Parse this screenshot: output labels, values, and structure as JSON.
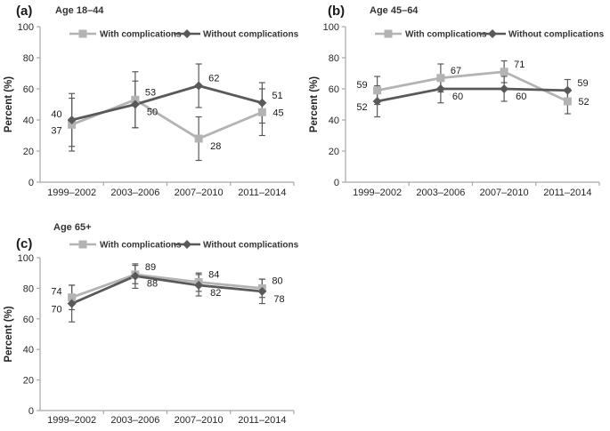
{
  "figure": {
    "background": "#ffffff"
  },
  "colors": {
    "with_complications": "#b3b3b3",
    "without_complications": "#595959",
    "axis": "#a6a6a6",
    "error_bar": "#595959",
    "tick_text": "#262626",
    "data_label_text": "#1a1a1a",
    "title_text": "#333333",
    "panel_label_text": "#1a1a1a"
  },
  "chart_data": [
    {
      "id": "a",
      "type": "line",
      "panel_label": "(a)",
      "title": "Age 18–44",
      "ylabel": "Percent (%)",
      "ylim": [
        0,
        100
      ],
      "yticks": [
        0,
        20,
        40,
        60,
        80,
        100
      ],
      "grid": false,
      "legend_position": "top-inside",
      "categories": [
        "1999–2002",
        "2003–2006",
        "2007–2010",
        "2011–2014"
      ],
      "series": [
        {
          "name": "With complications",
          "marker": "square",
          "color_key": "with_complications",
          "values": [
            37,
            53,
            28,
            45
          ],
          "errors": [
            17,
            18,
            14,
            15
          ],
          "label_pos": [
            "left-down",
            "right-up",
            "right-down",
            "right"
          ]
        },
        {
          "name": "Without complications",
          "marker": "diamond",
          "color_key": "without_complications",
          "values": [
            40,
            50,
            62,
            51
          ],
          "errors": [
            17,
            15,
            14,
            13
          ],
          "label_pos": [
            "left-up",
            "right-down",
            "right-up",
            "right-up"
          ]
        }
      ]
    },
    {
      "id": "b",
      "type": "line",
      "panel_label": "(b)",
      "title": "Age 45–64",
      "ylabel": "Percent (%)",
      "ylim": [
        0,
        100
      ],
      "yticks": [
        0,
        20,
        40,
        60,
        80,
        100
      ],
      "grid": false,
      "legend_position": "top-inside",
      "categories": [
        "1999–2002",
        "2003–2006",
        "2007–2010",
        "2011–2014"
      ],
      "series": [
        {
          "name": "With complications",
          "marker": "square",
          "color_key": "with_complications",
          "values": [
            59,
            67,
            71,
            52
          ],
          "errors": [
            9,
            9,
            7,
            8
          ],
          "label_pos": [
            "left-up",
            "right-up",
            "right-up",
            "right"
          ]
        },
        {
          "name": "Without complications",
          "marker": "diamond",
          "color_key": "without_complications",
          "values": [
            52,
            60,
            60,
            59
          ],
          "errors": [
            10,
            9,
            8,
            7
          ],
          "label_pos": [
            "left-down",
            "right-down",
            "right-down",
            "right-up"
          ]
        }
      ]
    },
    {
      "id": "c",
      "type": "line",
      "panel_label": "(c)",
      "title": "Age 65+",
      "ylabel": "Percent (%)",
      "ylim": [
        0,
        100
      ],
      "yticks": [
        0,
        20,
        40,
        60,
        80,
        100
      ],
      "grid": false,
      "legend_position": "top-inside",
      "categories": [
        "1999–2002",
        "2003–2006",
        "2007–2010",
        "2011–2014"
      ],
      "series": [
        {
          "name": "With complications",
          "marker": "square",
          "color_key": "with_complications",
          "values": [
            74,
            89,
            84,
            80
          ],
          "errors": [
            8,
            6,
            6,
            6
          ],
          "label_pos": [
            "left-up",
            "right-up",
            "right-up",
            "right-up"
          ]
        },
        {
          "name": "Without complications",
          "marker": "diamond",
          "color_key": "without_complications",
          "values": [
            70,
            88,
            82,
            78
          ],
          "errors": [
            12,
            8,
            7,
            8
          ],
          "label_pos": [
            "left-down",
            "right-down",
            "right-down",
            "right-down"
          ]
        }
      ]
    }
  ]
}
